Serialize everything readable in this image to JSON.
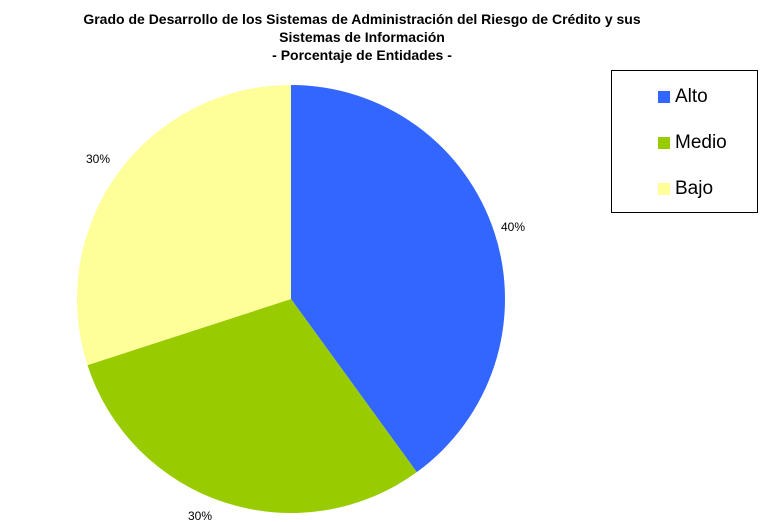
{
  "chart_data": {
    "type": "pie",
    "title_lines": [
      "Grado de Desarrollo de los Sistemas de Administración del Riesgo de Crédito y sus",
      "Sistemas de Información",
      "- Porcentaje de Entidades -"
    ],
    "categories": [
      "Alto",
      "Medio",
      "Bajo"
    ],
    "values": [
      40,
      30,
      30
    ],
    "data_labels": [
      "40%",
      "30%",
      "30%"
    ],
    "colors": [
      "#3366FF",
      "#99CC00",
      "#FFFF99"
    ],
    "legend": {
      "placement": "right",
      "entries": [
        "Alto",
        "Medio",
        "Bajo"
      ]
    }
  }
}
